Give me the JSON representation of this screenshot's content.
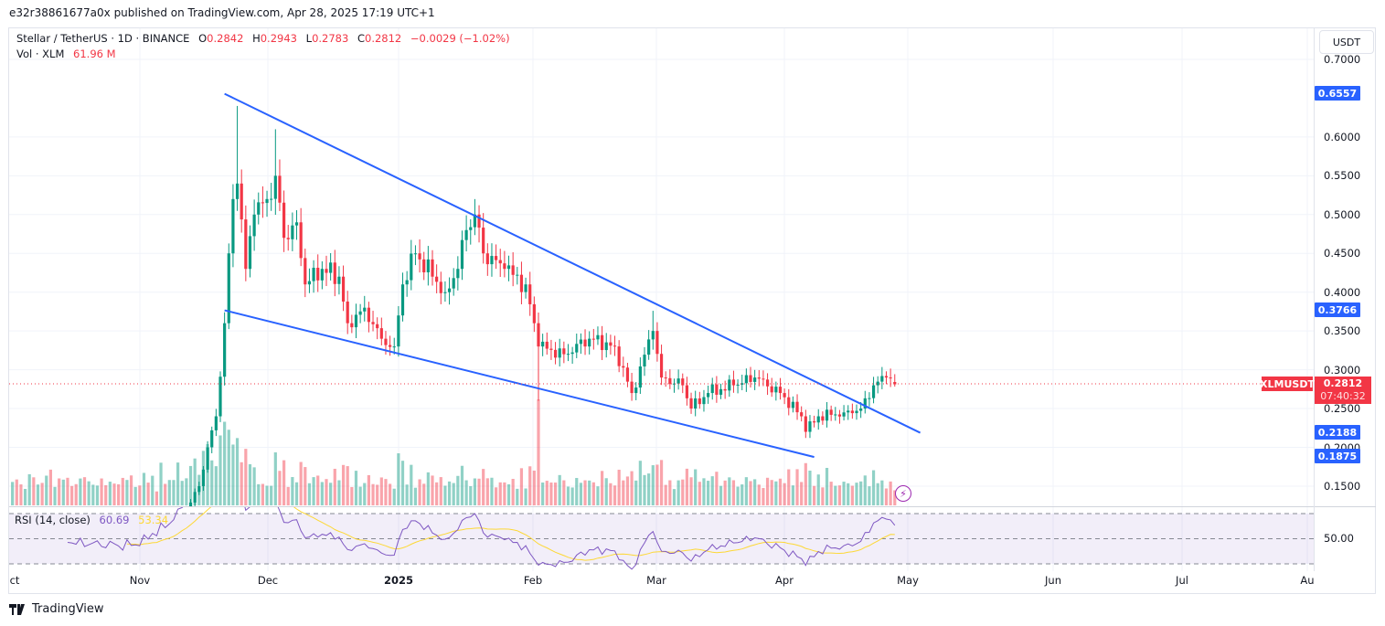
{
  "header": {
    "publish_line": "e32r38861677a0x published on TradingView.com, Apr 28, 2025 17:19 UTC+1"
  },
  "legend": {
    "symbol": "Stellar / TetherUS · 1D · BINANCE",
    "open_label": "O",
    "open": "0.2842",
    "high_label": "H",
    "high": "0.2943",
    "low_label": "L",
    "low": "0.2783",
    "close_label": "C",
    "close": "0.2812",
    "change": "−0.0029 (−1.02%)",
    "volume_label": "Vol · XLM",
    "volume": "61.96 M"
  },
  "price_axis": {
    "currency": "USDT",
    "ticks": [
      "0.7000",
      "0.6000",
      "0.5500",
      "0.5000",
      "0.4500",
      "0.4000",
      "0.3500",
      "0.3000",
      "0.2500",
      "0.2000",
      "0.1500"
    ],
    "labels": {
      "upper_start": "0.6557",
      "lower_start": "0.3766",
      "upper_end": "0.2188",
      "lower_end": "0.1875"
    },
    "current_symbol": "XLMUSDT",
    "current_price": "0.2812",
    "countdown": "07:40:32"
  },
  "time_axis": {
    "ticks": [
      "ct",
      "Nov",
      "Dec",
      "2025",
      "Feb",
      "Mar",
      "Apr",
      "May",
      "Jun",
      "Jul",
      "Au"
    ]
  },
  "rsi": {
    "label": "RSI (14, close)",
    "value": "60.69",
    "ma_value": "53.34",
    "level_label": "50.00"
  },
  "footer": {
    "brand": "TradingView"
  },
  "colors": {
    "up": "#089981",
    "down": "#f23645",
    "trendline": "#2962ff",
    "rsi": "#7e57c2",
    "rsi_ma": "#fdd835"
  },
  "chart_data": {
    "type": "candlestick",
    "title": "Stellar / TetherUS · 1D · BINANCE",
    "ylabel": "USDT",
    "ylim": [
      0.127,
      0.74
    ],
    "last_candle": {
      "date": "2025-04-28",
      "open": 0.2842,
      "high": 0.2943,
      "low": 0.2783,
      "close": 0.2812
    },
    "close_keypoints": [
      [
        "2024-10-01",
        0.094
      ],
      [
        "2024-10-15",
        0.092
      ],
      [
        "2024-11-01",
        0.088
      ],
      [
        "2024-11-08",
        0.1
      ],
      [
        "2024-11-12",
        0.12
      ],
      [
        "2024-11-15",
        0.15
      ],
      [
        "2024-11-17",
        0.2
      ],
      [
        "2024-11-19",
        0.24
      ],
      [
        "2024-11-21",
        0.36
      ],
      [
        "2024-11-22",
        0.45
      ],
      [
        "2024-11-23",
        0.52
      ],
      [
        "2024-11-24",
        0.54
      ],
      [
        "2024-11-26",
        0.43
      ],
      [
        "2024-11-28",
        0.5
      ],
      [
        "2024-12-01",
        0.52
      ],
      [
        "2024-12-03",
        0.55
      ],
      [
        "2024-12-05",
        0.47
      ],
      [
        "2024-12-08",
        0.49
      ],
      [
        "2024-12-10",
        0.41
      ],
      [
        "2024-12-14",
        0.43
      ],
      [
        "2024-12-18",
        0.42
      ],
      [
        "2024-12-20",
        0.36
      ],
      [
        "2024-12-24",
        0.38
      ],
      [
        "2024-12-28",
        0.34
      ],
      [
        "2024-12-31",
        0.33
      ],
      [
        "2025-01-02",
        0.41
      ],
      [
        "2025-01-05",
        0.45
      ],
      [
        "2025-01-09",
        0.42
      ],
      [
        "2025-01-12",
        0.4
      ],
      [
        "2025-01-15",
        0.43
      ],
      [
        "2025-01-17",
        0.48
      ],
      [
        "2025-01-19",
        0.5
      ],
      [
        "2025-01-21",
        0.45
      ],
      [
        "2025-01-26",
        0.43
      ],
      [
        "2025-01-31",
        0.41
      ],
      [
        "2025-02-02",
        0.36
      ],
      [
        "2025-02-03",
        0.33
      ],
      [
        "2025-02-09",
        0.32
      ],
      [
        "2025-02-15",
        0.34
      ],
      [
        "2025-02-21",
        0.33
      ],
      [
        "2025-02-25",
        0.27
      ],
      [
        "2025-03-02",
        0.35
      ],
      [
        "2025-03-04",
        0.29
      ],
      [
        "2025-03-09",
        0.28
      ],
      [
        "2025-03-11",
        0.25
      ],
      [
        "2025-03-15",
        0.27
      ],
      [
        "2025-03-21",
        0.28
      ],
      [
        "2025-03-26",
        0.29
      ],
      [
        "2025-04-01",
        0.27
      ],
      [
        "2025-04-06",
        0.24
      ],
      [
        "2025-04-07",
        0.22
      ],
      [
        "2025-04-10",
        0.24
      ],
      [
        "2025-04-16",
        0.245
      ],
      [
        "2025-04-20",
        0.25
      ],
      [
        "2025-04-23",
        0.28
      ],
      [
        "2025-04-26",
        0.29
      ],
      [
        "2025-04-28",
        0.2812
      ]
    ],
    "trendlines": [
      {
        "name": "upper",
        "start": [
          "2024-11-21",
          0.6557
        ],
        "end": [
          "2025-05-04",
          0.2188
        ]
      },
      {
        "name": "lower",
        "start": [
          "2024-11-21",
          0.3766
        ],
        "end": [
          "2025-04-09",
          0.1875
        ]
      }
    ],
    "rsi": {
      "period": 14,
      "levels": [
        70,
        50,
        30
      ],
      "last": 60.69,
      "ma_last": 53.34
    }
  }
}
